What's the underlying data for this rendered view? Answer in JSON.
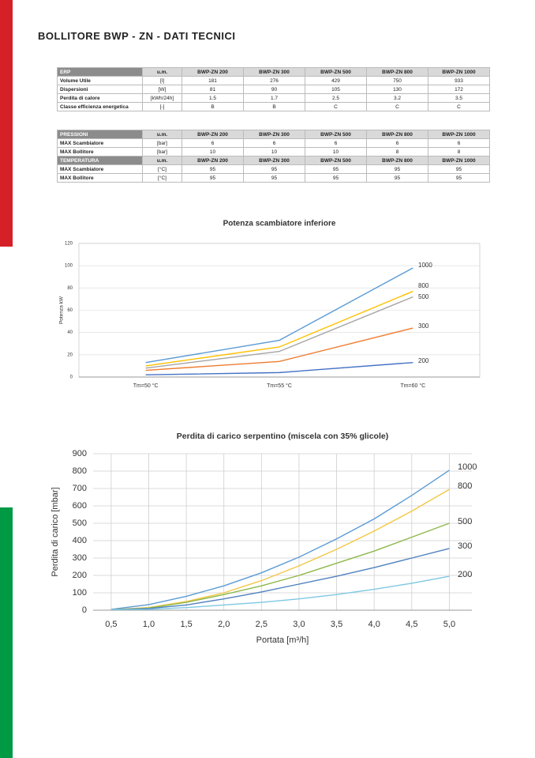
{
  "header": {
    "title": "BOLLITORE BWP - ZN - DATI TECNICI"
  },
  "tables": [
    {
      "rows": [
        [
          "ERP",
          "u.m.",
          "BWP-ZN 200",
          "BWP-ZN 300",
          "BWP-ZN 500",
          "BWP-ZN 800",
          "BWP-ZN 1000"
        ],
        [
          "Volume Utile",
          "[l]",
          "181",
          "276",
          "429",
          "750",
          "933"
        ],
        [
          "Dispersioni",
          "[W]",
          "81",
          "90",
          "105",
          "130",
          "172"
        ],
        [
          "Perdita di calore",
          "[kWh/24h]",
          "1.5",
          "1.7",
          "2.5",
          "3.2",
          "3.5"
        ],
        [
          "Classe efficienza energetica",
          "[-]",
          "B",
          "B",
          "C",
          "C",
          "C"
        ]
      ]
    },
    {
      "rows": [
        [
          "PRESSIONI",
          "u.m.",
          "BWP-ZN 200",
          "BWP-ZN 300",
          "BWP-ZN 500",
          "BWP-ZN 800",
          "BWP-ZN 1000"
        ],
        [
          "MAX Scambiatore",
          "[bar]",
          "6",
          "6",
          "6",
          "6",
          "6"
        ],
        [
          "MAX Bollitore",
          "[bar]",
          "10",
          "10",
          "10",
          "8",
          "8"
        ],
        [
          "TEMPERATURA",
          "u.m.",
          "BWP-ZN 200",
          "BWP-ZN 300",
          "BWP-ZN 500",
          "BWP-ZN 800",
          "BWP-ZN 1000"
        ],
        [
          "MAX Scambiatore",
          "[°C]",
          "95",
          "95",
          "95",
          "95",
          "95"
        ],
        [
          "MAX Bollitore",
          "[°C]",
          "95",
          "95",
          "95",
          "95",
          "95"
        ]
      ]
    }
  ],
  "chart_data": [
    {
      "type": "line",
      "title": "Potenza scambiatore inferiore",
      "y_label": "Potenza kW",
      "categories": [
        "Tm=50 °C",
        "Tm=55 °C",
        "Tm=60 °C"
      ],
      "ylim": [
        0,
        120
      ],
      "yticks": [
        0,
        20,
        40,
        60,
        80,
        100,
        120
      ],
      "grid": true,
      "series": [
        {
          "name": "200",
          "color": "#4472c4",
          "values": [
            2,
            4,
            13
          ]
        },
        {
          "name": "300",
          "color": "#ed7d31",
          "values": [
            6,
            14,
            44
          ]
        },
        {
          "name": "500",
          "color": "#a5a5a5",
          "values": [
            8,
            23,
            72
          ]
        },
        {
          "name": "800",
          "color": "#ffc000",
          "values": [
            10,
            27,
            77
          ]
        },
        {
          "name": "1000",
          "color": "#5b9bd5",
          "values": [
            13,
            33,
            98
          ]
        }
      ]
    },
    {
      "type": "line",
      "title": "Perdita di carico serpentino (miscela con 35% glicole)",
      "x_label": "Portata [m³/h]",
      "y_label": "Perdita di carico [mbar]",
      "x": [
        0.5,
        1.0,
        1.5,
        2.0,
        2.5,
        3.0,
        3.5,
        4.0,
        4.5,
        5.0
      ],
      "xlim": [
        0.26,
        5.3
      ],
      "xticks": [
        {
          "value": 0.5,
          "label": "0,5"
        },
        {
          "value": 1.0,
          "label": "1,0"
        },
        {
          "value": 1.5,
          "label": "1,5"
        },
        {
          "value": 2.0,
          "label": "2,0"
        },
        {
          "value": 2.5,
          "label": "2,5"
        },
        {
          "value": 3.0,
          "label": "3,0"
        },
        {
          "value": 3.5,
          "label": "3,5"
        },
        {
          "value": 4.0,
          "label": "4,0"
        },
        {
          "value": 4.5,
          "label": "4,5"
        },
        {
          "value": 5.0,
          "label": "5,0"
        }
      ],
      "ylim": [
        0,
        900
      ],
      "yticks": [
        0,
        100,
        200,
        300,
        400,
        500,
        600,
        700,
        800,
        900
      ],
      "grid": true,
      "series": [
        {
          "name": "1000",
          "color": "#5b9bd5",
          "values": [
            5,
            32,
            80,
            140,
            215,
            305,
            410,
            525,
            660,
            805
          ]
        },
        {
          "name": "800",
          "color": "#f2c744",
          "values": [
            3,
            15,
            50,
            100,
            170,
            255,
            350,
            455,
            570,
            695
          ]
        },
        {
          "name": "500",
          "color": "#8db84a",
          "values": [
            3,
            12,
            45,
            90,
            140,
            200,
            270,
            340,
            420,
            500
          ]
        },
        {
          "name": "300",
          "color": "#4f81bd",
          "values": [
            3,
            10,
            30,
            65,
            105,
            150,
            195,
            245,
            300,
            355
          ]
        },
        {
          "name": "200",
          "color": "#7ec8e3",
          "values": [
            3,
            5,
            15,
            30,
            45,
            65,
            90,
            120,
            155,
            195
          ]
        }
      ]
    }
  ]
}
